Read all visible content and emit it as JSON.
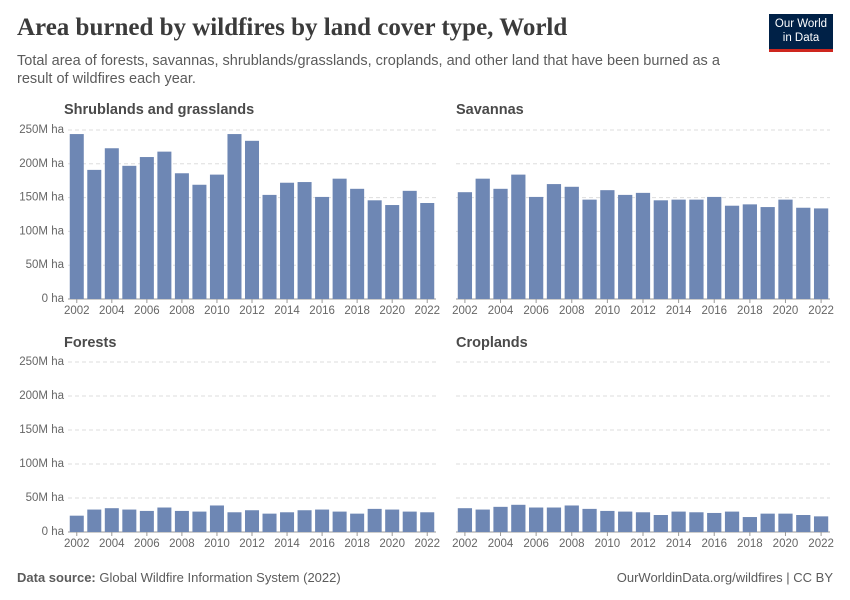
{
  "title": "Area burned by wildfires by land cover type, World",
  "subtitle": "Total area of forests, savannas, shrublands/grasslands, croplands, and other land that have been burned as a result of wildfires each year.",
  "logo": [
    "Our World",
    "in Data"
  ],
  "source_label": "Data source:",
  "source": "Global Wildfire Information System (2022)",
  "footer_right": "OurWorldinData.org/wildfires | CC BY",
  "chart_data": [
    {
      "type": "bar",
      "title": "Shrublands and grasslands",
      "color": "#6e87b4",
      "x": [
        2002,
        2003,
        2004,
        2005,
        2006,
        2007,
        2008,
        2009,
        2010,
        2011,
        2012,
        2013,
        2014,
        2015,
        2016,
        2017,
        2018,
        2019,
        2020,
        2021,
        2022
      ],
      "values": [
        244000000,
        191000000,
        223000000,
        197000000,
        210000000,
        218000000,
        186000000,
        169000000,
        184000000,
        244000000,
        234000000,
        154000000,
        172000000,
        173000000,
        151000000,
        178000000,
        163000000,
        146000000,
        139000000,
        160000000,
        142000000
      ],
      "ylim": [
        0,
        250000000
      ],
      "yticks": [
        {
          "value": 0,
          "label": "0 ha"
        },
        {
          "value": 50000000,
          "label": "50M ha"
        },
        {
          "value": 100000000,
          "label": "100M ha"
        },
        {
          "value": 150000000,
          "label": "150M ha"
        },
        {
          "value": 200000000,
          "label": "200M ha"
        },
        {
          "value": 250000000,
          "label": "250M ha"
        }
      ],
      "xticks": [
        2002,
        2004,
        2006,
        2008,
        2010,
        2012,
        2014,
        2016,
        2018,
        2020,
        2022
      ],
      "grid": true
    },
    {
      "type": "bar",
      "title": "Savannas",
      "color": "#6e87b4",
      "x": [
        2002,
        2003,
        2004,
        2005,
        2006,
        2007,
        2008,
        2009,
        2010,
        2011,
        2012,
        2013,
        2014,
        2015,
        2016,
        2017,
        2018,
        2019,
        2020,
        2021,
        2022
      ],
      "values": [
        158000000,
        178000000,
        163000000,
        184000000,
        151000000,
        170000000,
        166000000,
        147000000,
        161000000,
        154000000,
        157000000,
        146000000,
        147000000,
        147000000,
        151000000,
        138000000,
        140000000,
        136000000,
        147000000,
        135000000,
        134000000
      ],
      "ylim": [
        0,
        250000000
      ],
      "yticks": [
        0,
        50000000,
        100000000,
        150000000,
        200000000,
        250000000
      ],
      "xticks": [
        2002,
        2004,
        2006,
        2008,
        2010,
        2012,
        2014,
        2016,
        2018,
        2020,
        2022
      ],
      "grid": true
    },
    {
      "type": "bar",
      "title": "Forests",
      "color": "#6e87b4",
      "x": [
        2002,
        2003,
        2004,
        2005,
        2006,
        2007,
        2008,
        2009,
        2010,
        2011,
        2012,
        2013,
        2014,
        2015,
        2016,
        2017,
        2018,
        2019,
        2020,
        2021,
        2022
      ],
      "values": [
        24000000,
        33000000,
        35000000,
        33000000,
        31000000,
        36000000,
        31000000,
        30000000,
        39000000,
        29000000,
        32000000,
        27000000,
        29000000,
        32000000,
        33000000,
        30000000,
        27000000,
        34000000,
        33000000,
        30000000,
        29000000
      ],
      "ylim": [
        0,
        250000000
      ],
      "yticks": [
        {
          "value": 0,
          "label": "0 ha"
        },
        {
          "value": 50000000,
          "label": "50M ha"
        },
        {
          "value": 100000000,
          "label": "100M ha"
        },
        {
          "value": 150000000,
          "label": "150M ha"
        },
        {
          "value": 200000000,
          "label": "200M ha"
        },
        {
          "value": 250000000,
          "label": "250M ha"
        }
      ],
      "xticks": [
        2002,
        2004,
        2006,
        2008,
        2010,
        2012,
        2014,
        2016,
        2018,
        2020,
        2022
      ],
      "grid": true
    },
    {
      "type": "bar",
      "title": "Croplands",
      "color": "#6e87b4",
      "x": [
        2002,
        2003,
        2004,
        2005,
        2006,
        2007,
        2008,
        2009,
        2010,
        2011,
        2012,
        2013,
        2014,
        2015,
        2016,
        2017,
        2018,
        2019,
        2020,
        2021,
        2022
      ],
      "values": [
        35000000,
        33000000,
        37000000,
        40000000,
        36000000,
        36000000,
        39000000,
        34000000,
        31000000,
        30000000,
        29000000,
        25000000,
        30000000,
        29000000,
        28000000,
        30000000,
        22000000,
        27000000,
        27000000,
        25000000,
        23000000
      ],
      "ylim": [
        0,
        250000000
      ],
      "yticks": [
        0,
        50000000,
        100000000,
        150000000,
        200000000,
        250000000
      ],
      "xticks": [
        2002,
        2004,
        2006,
        2008,
        2010,
        2012,
        2014,
        2016,
        2018,
        2020,
        2022
      ],
      "grid": true
    }
  ]
}
